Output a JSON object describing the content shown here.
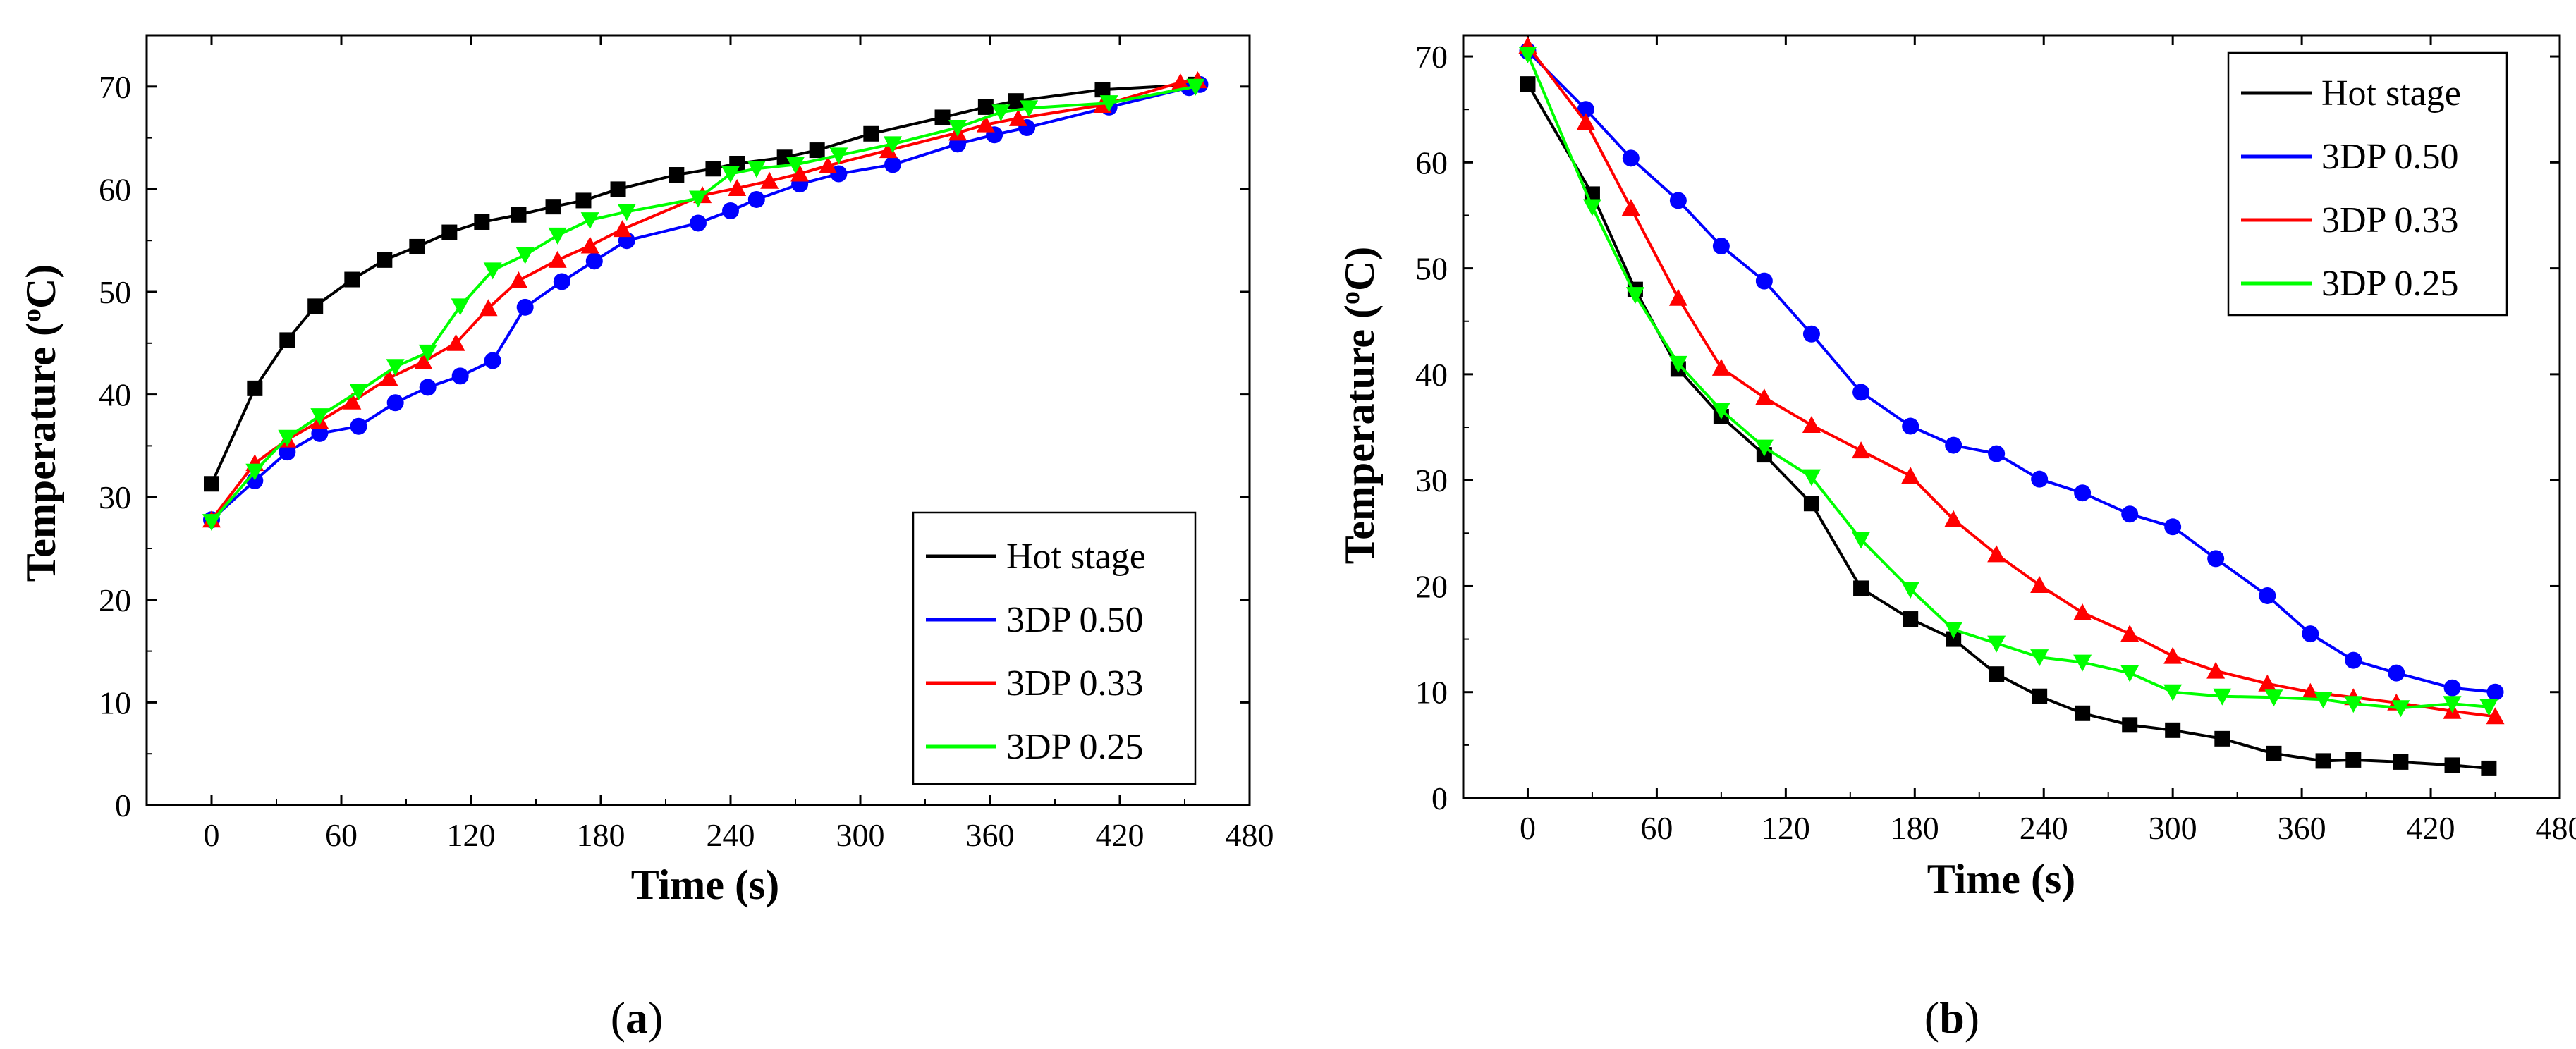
{
  "figure_labels": [
    {
      "open": "(",
      "letter": "a",
      "close": ")"
    },
    {
      "open": "(",
      "letter": "b",
      "close": ")"
    }
  ],
  "chart_data": [
    {
      "type": "line",
      "xlabel": "Time (s)",
      "ylabel": "Temperature (°C)",
      "xlim": [
        -30,
        480
      ],
      "ylim": [
        0,
        75
      ],
      "xticks": [
        0,
        60,
        120,
        180,
        240,
        300,
        360,
        420,
        480
      ],
      "yticks": [
        0,
        10,
        20,
        30,
        40,
        50,
        60,
        70
      ],
      "legend_position": "bottom-right",
      "series": [
        {
          "name": "Hot stage",
          "color": "#000000",
          "marker": "square",
          "x": [
            0,
            20,
            35,
            48,
            65,
            80,
            95,
            110,
            125,
            142,
            158,
            172,
            188,
            215,
            232,
            243,
            265,
            280,
            305,
            338,
            358,
            372,
            412,
            455
          ],
          "y": [
            31.3,
            40.6,
            45.3,
            48.6,
            51.2,
            53.1,
            54.4,
            55.8,
            56.8,
            57.5,
            58.3,
            58.9,
            60.0,
            61.4,
            62.0,
            62.5,
            63.1,
            63.8,
            65.4,
            67.0,
            68.0,
            68.6,
            69.7,
            70.2
          ]
        },
        {
          "name": "3DP 0.50",
          "color": "#0000ff",
          "marker": "circle",
          "x": [
            0,
            20,
            35,
            50,
            68,
            85,
            100,
            115,
            130,
            145,
            162,
            177,
            192,
            225,
            240,
            252,
            272,
            290,
            315,
            345,
            362,
            377,
            415,
            452,
            457
          ],
          "y": [
            27.8,
            31.6,
            34.4,
            36.2,
            36.9,
            39.2,
            40.7,
            41.8,
            43.3,
            48.5,
            51.0,
            53.0,
            55.0,
            56.7,
            57.9,
            59.0,
            60.5,
            61.5,
            62.4,
            64.4,
            65.3,
            66.0,
            68.0,
            69.9,
            70.2
          ]
        },
        {
          "name": "3DP 0.33",
          "color": "#ff0000",
          "marker": "triangle-up",
          "x": [
            0,
            20,
            35,
            50,
            65,
            82,
            98,
            113,
            128,
            142,
            160,
            175,
            190,
            227,
            243,
            258,
            272,
            285,
            313,
            345,
            358,
            373,
            412,
            448,
            456
          ],
          "y": [
            27.8,
            33.3,
            35.6,
            37.4,
            39.3,
            41.6,
            43.2,
            45.0,
            48.4,
            51.1,
            53.1,
            54.5,
            56.1,
            59.4,
            60.1,
            60.8,
            61.5,
            62.3,
            63.8,
            65.5,
            66.3,
            66.9,
            68.2,
            70.4,
            70.6
          ]
        },
        {
          "name": "3DP 0.25",
          "color": "#00ff00",
          "marker": "triangle-down",
          "x": [
            0,
            20,
            35,
            50,
            68,
            85,
            100,
            115,
            130,
            145,
            160,
            175,
            192,
            225,
            240,
            252,
            270,
            290,
            315,
            345,
            365,
            378,
            415,
            455
          ],
          "y": [
            27.6,
            32.5,
            35.8,
            37.9,
            40.3,
            42.7,
            44.1,
            48.6,
            52.1,
            53.6,
            55.5,
            57.0,
            57.8,
            59.1,
            61.5,
            62.0,
            62.4,
            63.3,
            64.4,
            66.0,
            67.5,
            67.9,
            68.4,
            70.0
          ]
        }
      ]
    },
    {
      "type": "line",
      "xlabel": "Time (s)",
      "ylabel": "Temperature (°C)",
      "xlim": [
        -30,
        480
      ],
      "ylim": [
        0,
        72
      ],
      "xticks": [
        0,
        60,
        120,
        180,
        240,
        300,
        360,
        420,
        480
      ],
      "yticks": [
        0,
        10,
        20,
        30,
        40,
        50,
        60,
        70
      ],
      "legend_position": "top-right",
      "series": [
        {
          "name": "Hot stage",
          "color": "#000000",
          "marker": "square",
          "x": [
            0,
            30,
            50,
            70,
            90,
            110,
            132,
            155,
            178,
            198,
            218,
            238,
            258,
            280,
            300,
            323,
            347,
            370,
            384,
            406,
            430,
            447
          ],
          "y": [
            67.4,
            57.0,
            48.0,
            40.5,
            36.0,
            32.4,
            27.8,
            19.8,
            16.9,
            15.0,
            11.7,
            9.6,
            8.0,
            6.9,
            6.4,
            5.6,
            4.2,
            3.5,
            3.6,
            3.4,
            3.1,
            2.8
          ]
        },
        {
          "name": "3DP 0.50",
          "color": "#0000ff",
          "marker": "circle",
          "x": [
            0,
            27,
            48,
            70,
            90,
            110,
            132,
            155,
            178,
            198,
            218,
            238,
            258,
            280,
            300,
            320,
            344,
            364,
            384,
            404,
            430,
            450
          ],
          "y": [
            70.5,
            65.0,
            60.4,
            56.4,
            52.1,
            48.8,
            43.8,
            38.3,
            35.1,
            33.3,
            32.5,
            30.1,
            28.8,
            26.8,
            25.6,
            22.6,
            19.1,
            15.5,
            13.0,
            11.8,
            10.4,
            10.0
          ]
        },
        {
          "name": "3DP 0.33",
          "color": "#ff0000",
          "marker": "triangle-up",
          "x": [
            0,
            27,
            48,
            70,
            90,
            110,
            132,
            155,
            178,
            198,
            218,
            238,
            258,
            280,
            300,
            320,
            344,
            364,
            384,
            404,
            430,
            450
          ],
          "y": [
            71.0,
            63.8,
            55.7,
            47.2,
            40.6,
            37.8,
            35.2,
            32.8,
            30.4,
            26.3,
            23.0,
            20.1,
            17.5,
            15.5,
            13.4,
            12.0,
            10.8,
            10.0,
            9.5,
            9.0,
            8.2,
            7.7
          ]
        },
        {
          "name": "3DP 0.25",
          "color": "#00ff00",
          "marker": "triangle-down",
          "x": [
            0,
            30,
            50,
            70,
            90,
            110,
            132,
            155,
            178,
            198,
            218,
            238,
            258,
            280,
            300,
            323,
            347,
            370,
            384,
            406,
            430,
            447
          ],
          "y": [
            70.2,
            55.8,
            47.5,
            41.0,
            36.6,
            33.1,
            30.3,
            24.4,
            19.7,
            15.9,
            14.6,
            13.3,
            12.8,
            11.8,
            10.0,
            9.6,
            9.5,
            9.3,
            8.9,
            8.5,
            8.9,
            8.6
          ]
        }
      ]
    }
  ]
}
